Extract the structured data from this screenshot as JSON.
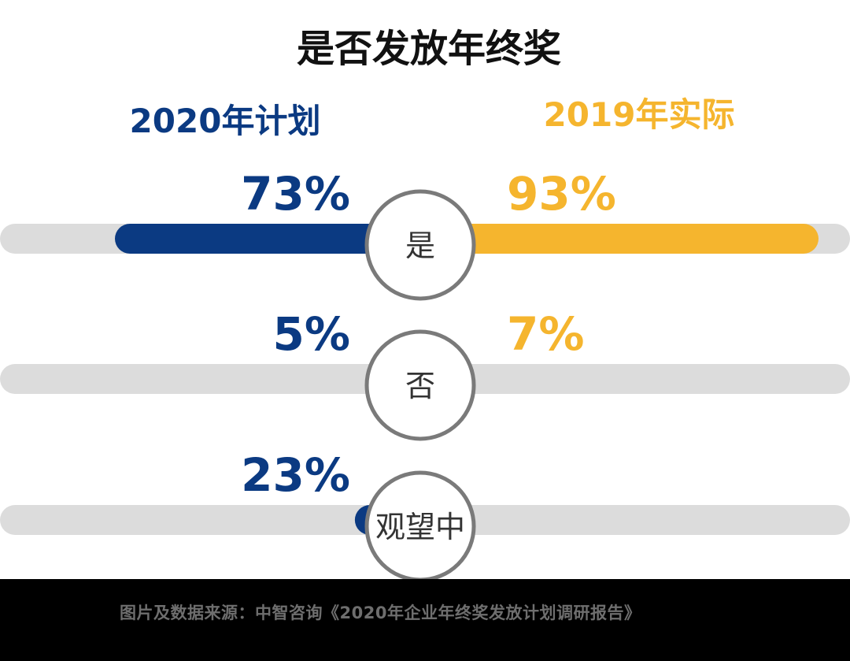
{
  "chart_data": {
    "type": "bar",
    "title": "是否发放年终奖",
    "series": [
      {
        "name": "2020年计划",
        "color": "#0b3a82",
        "values": [
          73,
          5,
          23
        ],
        "labels": [
          "73%",
          "5%",
          "23%"
        ]
      },
      {
        "name": "2019年实际",
        "color": "#f5b52e",
        "values": [
          93,
          7,
          null
        ],
        "labels": [
          "93%",
          "7%",
          ""
        ]
      }
    ],
    "categories": [
      "是",
      "否",
      "观望中"
    ],
    "ylim": [
      0,
      100
    ],
    "track_color": "#dcdcdc",
    "circle_border_color": "#7a7a7a"
  },
  "footer": {
    "source": "图片及数据来源：中智咨询《2020年企业年终奖发放计划调研报告》"
  }
}
